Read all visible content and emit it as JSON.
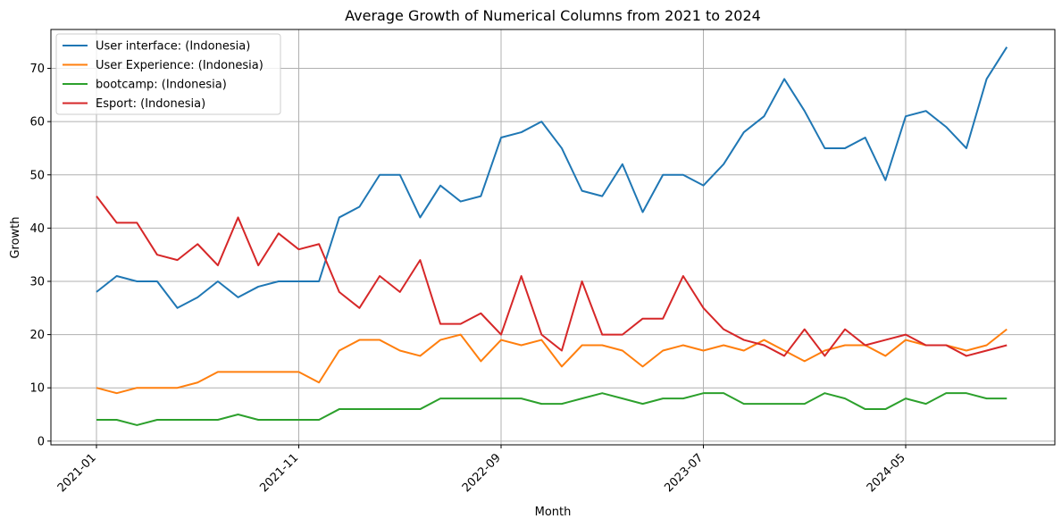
{
  "chart_data": {
    "type": "line",
    "title": "Average Growth of Numerical Columns from 2021 to 2024",
    "xlabel": "Month",
    "ylabel": "Growth",
    "x": [
      "2021-01",
      "2021-02",
      "2021-03",
      "2021-04",
      "2021-05",
      "2021-06",
      "2021-07",
      "2021-08",
      "2021-09",
      "2021-10",
      "2021-11",
      "2021-12",
      "2022-01",
      "2022-02",
      "2022-03",
      "2022-04",
      "2022-05",
      "2022-06",
      "2022-07",
      "2022-08",
      "2022-09",
      "2022-10",
      "2022-11",
      "2022-12",
      "2023-01",
      "2023-02",
      "2023-03",
      "2023-04",
      "2023-05",
      "2023-06",
      "2023-07",
      "2023-08",
      "2023-09",
      "2023-10",
      "2023-11",
      "2023-12",
      "2024-01",
      "2024-02",
      "2024-03",
      "2024-04",
      "2024-05",
      "2024-06",
      "2024-07",
      "2024-08",
      "2024-09",
      "2024-10"
    ],
    "x_ticks": [
      "2021-01",
      "2021-11",
      "2022-09",
      "2023-07",
      "2024-05"
    ],
    "ylim": [
      -0.7,
      77.3
    ],
    "y_ticks": [
      0,
      10,
      20,
      30,
      40,
      50,
      60,
      70
    ],
    "grid": true,
    "legend_position": "upper-left",
    "series": [
      {
        "name": "User interface: (Indonesia)",
        "color": "#1f77b4",
        "values": [
          28,
          31,
          30,
          30,
          25,
          27,
          30,
          27,
          29,
          30,
          30,
          30,
          42,
          44,
          50,
          50,
          42,
          48,
          45,
          46,
          57,
          58,
          60,
          55,
          47,
          46,
          52,
          43,
          50,
          50,
          48,
          52,
          58,
          61,
          68,
          62,
          55,
          55,
          57,
          49,
          61,
          62,
          59,
          55,
          68,
          74
        ]
      },
      {
        "name": "User Experience: (Indonesia)",
        "color": "#ff7f0e",
        "values": [
          10,
          9,
          10,
          10,
          10,
          11,
          13,
          13,
          13,
          13,
          13,
          11,
          17,
          19,
          19,
          17,
          16,
          19,
          20,
          15,
          19,
          18,
          19,
          14,
          18,
          18,
          17,
          14,
          17,
          18,
          17,
          18,
          17,
          19,
          17,
          15,
          17,
          18,
          18,
          16,
          19,
          18,
          18,
          17,
          18,
          21
        ]
      },
      {
        "name": "bootcamp: (Indonesia)",
        "color": "#2ca02c",
        "values": [
          4,
          4,
          3,
          4,
          4,
          4,
          4,
          5,
          4,
          4,
          4,
          4,
          6,
          6,
          6,
          6,
          6,
          8,
          8,
          8,
          8,
          8,
          7,
          7,
          8,
          9,
          8,
          7,
          8,
          8,
          9,
          9,
          7,
          7,
          7,
          7,
          9,
          8,
          6,
          6,
          8,
          7,
          9,
          9,
          8,
          8
        ]
      },
      {
        "name": "Esport: (Indonesia)",
        "color": "#d62728",
        "values": [
          46,
          41,
          41,
          35,
          34,
          37,
          33,
          42,
          33,
          39,
          36,
          37,
          28,
          25,
          31,
          28,
          34,
          22,
          22,
          24,
          20,
          31,
          20,
          17,
          30,
          20,
          20,
          23,
          23,
          31,
          25,
          21,
          19,
          18,
          16,
          21,
          16,
          21,
          18,
          19,
          20,
          18,
          18,
          16,
          17,
          18
        ]
      }
    ]
  }
}
